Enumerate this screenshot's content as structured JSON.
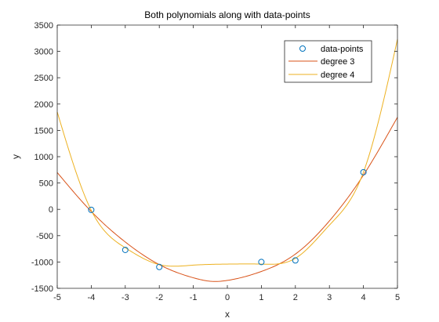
{
  "chart_data": {
    "type": "line",
    "title": "Both polynomials along with data-points",
    "xlabel": "x",
    "ylabel": "y",
    "xlim": [
      -5,
      5
    ],
    "ylim": [
      -1500,
      3500
    ],
    "xticks": [
      -5,
      -4,
      -3,
      -2,
      -1,
      0,
      1,
      2,
      3,
      4,
      5
    ],
    "yticks": [
      -1500,
      -1000,
      -500,
      0,
      500,
      1000,
      1500,
      2000,
      2500,
      3000,
      3500
    ],
    "grid": false,
    "legend_position": "top-right",
    "series": [
      {
        "name": "data-points",
        "kind": "scatter",
        "marker": "circle",
        "color": "#0072BD",
        "x": [
          -4,
          -3,
          -2,
          1,
          2,
          4
        ],
        "y": [
          -10,
          -770,
          -1095,
          -1000,
          -970,
          705
        ]
      },
      {
        "name": "degree 3",
        "kind": "line",
        "color": "#D95319",
        "x": [
          -5,
          -4,
          -3,
          -2,
          -1,
          -0.4,
          0,
          1,
          2,
          3,
          4,
          5
        ],
        "y": [
          700,
          -40,
          -620,
          -1050,
          -1300,
          -1370,
          -1350,
          -1180,
          -850,
          -220,
          650,
          1750
        ]
      },
      {
        "name": "degree 4",
        "kind": "line",
        "color": "#EDB120",
        "x": [
          -5,
          -4,
          -3,
          -2,
          -1,
          0,
          1,
          2,
          3,
          4,
          5
        ],
        "y": [
          1850,
          -20,
          -730,
          -1050,
          -1060,
          -1040,
          -1040,
          -930,
          -300,
          705,
          3230
        ]
      }
    ]
  }
}
